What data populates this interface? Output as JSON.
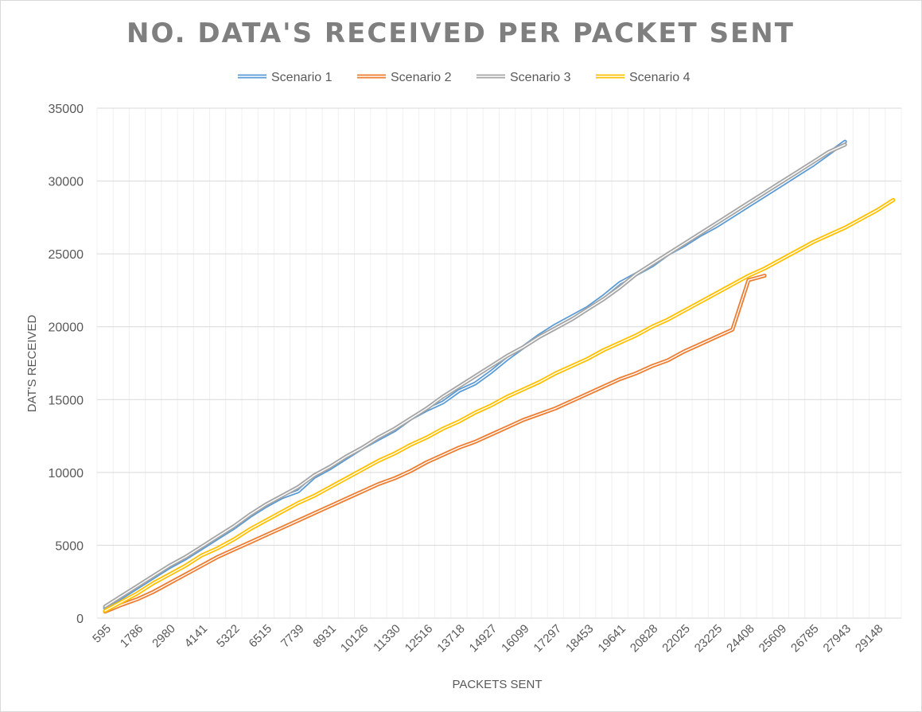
{
  "chart_data": {
    "type": "line",
    "title": "NO. DATA'S RECEIVED PER PACKET SENT",
    "xlabel": "PACKETS SENT",
    "ylabel": "DAT'S RECEIVED",
    "ylim": [
      0,
      35000
    ],
    "y_ticks": [
      "0",
      "5000",
      "10000",
      "15000",
      "20000",
      "25000",
      "30000",
      "35000"
    ],
    "x_tick_labels": [
      "595",
      "1786",
      "2980",
      "4141",
      "5322",
      "6515",
      "7739",
      "8931",
      "10126",
      "11330",
      "12516",
      "13718",
      "14927",
      "16099",
      "17297",
      "18453",
      "19641",
      "20828",
      "22025",
      "23225",
      "24408",
      "25609",
      "26785",
      "27943",
      "29148"
    ],
    "n_categories": 50,
    "grid": true,
    "legend_position": "top",
    "series": [
      {
        "name": "Scenario 1",
        "color": "#5b9bd5",
        "values": [
          700,
          1400,
          2100,
          2800,
          3500,
          4100,
          4800,
          5500,
          6200,
          7000,
          7700,
          8300,
          8700,
          9700,
          10300,
          11000,
          11700,
          12300,
          12900,
          13700,
          14300,
          14800,
          15600,
          16100,
          16900,
          17800,
          18600,
          19400,
          20100,
          20700,
          21300,
          22100,
          23000,
          23600,
          24200,
          25000,
          25600,
          26300,
          26900,
          27600,
          28300,
          29000,
          29700,
          30400,
          31100,
          31900,
          32700
        ]
      },
      {
        "name": "Scenario 2",
        "color": "#ed7d31",
        "values": [
          450,
          900,
          1300,
          1800,
          2400,
          3000,
          3600,
          4200,
          4700,
          5200,
          5700,
          6200,
          6700,
          7200,
          7700,
          8200,
          8700,
          9200,
          9600,
          10100,
          10700,
          11200,
          11700,
          12100,
          12600,
          13100,
          13600,
          14000,
          14400,
          14900,
          15400,
          15900,
          16400,
          16800,
          17300,
          17700,
          18300,
          18800,
          19300,
          19800,
          23200,
          23500
        ]
      },
      {
        "name": "Scenario 3",
        "color": "#a5a5a5",
        "values": [
          800,
          1500,
          2200,
          2900,
          3600,
          4200,
          4900,
          5600,
          6300,
          7100,
          7800,
          8400,
          9000,
          9800,
          10400,
          11100,
          11700,
          12400,
          13000,
          13700,
          14400,
          15200,
          15900,
          16600,
          17300,
          18000,
          18600,
          19300,
          19900,
          20500,
          21200,
          21900,
          22700,
          23600,
          24300,
          25000,
          25700,
          26400,
          27100,
          27800,
          28500,
          29200,
          29900,
          30600,
          31300,
          32000,
          32500
        ]
      },
      {
        "name": "Scenario 4",
        "color": "#ffc000",
        "values": [
          500,
          1100,
          1700,
          2400,
          3000,
          3600,
          4300,
          4800,
          5400,
          6100,
          6700,
          7300,
          7900,
          8400,
          9000,
          9600,
          10200,
          10800,
          11300,
          11900,
          12400,
          13000,
          13500,
          14100,
          14600,
          15200,
          15700,
          16200,
          16800,
          17300,
          17800,
          18400,
          18900,
          19400,
          20000,
          20500,
          21100,
          21700,
          22300,
          22900,
          23500,
          24000,
          24600,
          25200,
          25800,
          26300,
          26800,
          27400,
          28000,
          28700
        ]
      }
    ]
  }
}
